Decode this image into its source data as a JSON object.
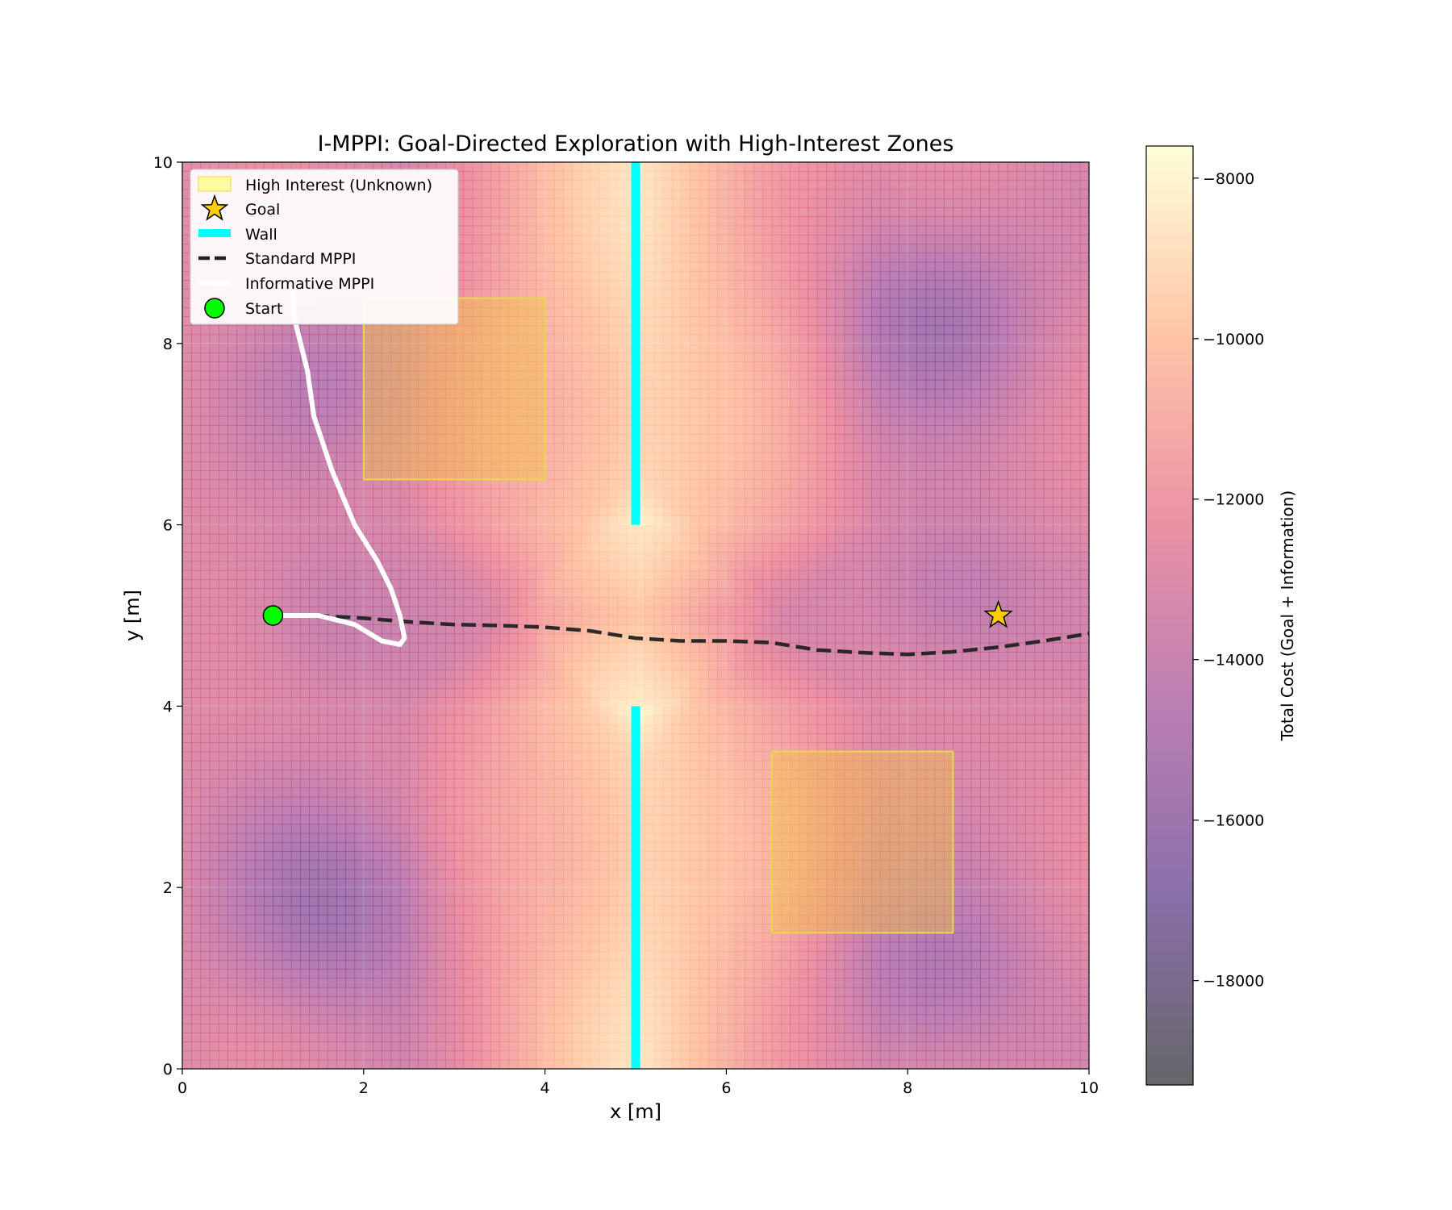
{
  "chart_data": {
    "type": "heatmap",
    "title": "I-MPPI: Goal-Directed Exploration with High-Interest Zones",
    "xlabel": "x [m]",
    "ylabel": "y [m]",
    "xlim": [
      0,
      10
    ],
    "ylim": [
      0,
      10
    ],
    "xticks": [
      0,
      2,
      4,
      6,
      8,
      10
    ],
    "yticks": [
      0,
      2,
      4,
      6,
      8,
      10
    ],
    "xtick_labels": [
      "0",
      "2",
      "4",
      "6",
      "8",
      "10"
    ],
    "ytick_labels": [
      "0",
      "2",
      "4",
      "6",
      "8",
      "10"
    ],
    "grid": true,
    "colorbar": {
      "label": "Total Cost (Goal + Information)",
      "range": [
        -19300,
        -7600
      ],
      "ticks": [
        -8000,
        -10000,
        -12000,
        -14000,
        -16000,
        -18000
      ],
      "tick_labels": [
        "−8000",
        "−10000",
        "−12000",
        "−14000",
        "−16000",
        "−18000"
      ],
      "colormap": [
        "#000004",
        "#3b0f70",
        "#8c2981",
        "#de4968",
        "#fe9f6d",
        "#fcfdbf"
      ],
      "alpha": 0.6
    },
    "high_interest_zones": [
      {
        "x": [
          2.0,
          4.0
        ],
        "y": [
          6.5,
          8.5
        ]
      },
      {
        "x": [
          6.5,
          8.5
        ],
        "y": [
          1.5,
          3.5
        ]
      }
    ],
    "zone_color": "#f5c542",
    "walls": [
      {
        "x": 5.0,
        "y": [
          0.0,
          4.0
        ]
      },
      {
        "x": 5.0,
        "y": [
          6.0,
          10.0
        ]
      }
    ],
    "wall_color": "#00ffff",
    "goal": {
      "x": 9.0,
      "y": 5.0
    },
    "goal_color": "#ffcc00",
    "start": {
      "x": 1.0,
      "y": 5.0
    },
    "start_color": "#00ff00",
    "series": [
      {
        "name": "Standard MPPI",
        "style": "dashed",
        "color": "#222222",
        "x": [
          1.0,
          1.5,
          2.0,
          2.5,
          3.0,
          3.5,
          4.0,
          4.5,
          5.0,
          5.5,
          6.0,
          6.5,
          7.0,
          7.5,
          8.0,
          8.5,
          9.0,
          9.5,
          10.0
        ],
        "y": [
          5.0,
          5.0,
          4.97,
          4.93,
          4.9,
          4.89,
          4.87,
          4.83,
          4.75,
          4.72,
          4.72,
          4.7,
          4.62,
          4.59,
          4.57,
          4.6,
          4.65,
          4.72,
          4.8
        ]
      },
      {
        "name": "Informative MPPI",
        "style": "solid",
        "color": "#ffffff",
        "x": [
          1.0,
          1.5,
          1.9,
          2.2,
          2.4,
          2.45,
          2.4,
          2.3,
          2.15,
          1.9,
          1.65,
          1.45,
          1.38,
          1.28,
          1.23,
          1.22
        ],
        "y": [
          5.0,
          5.0,
          4.9,
          4.72,
          4.68,
          4.75,
          5.0,
          5.3,
          5.6,
          6.0,
          6.6,
          7.2,
          7.7,
          8.1,
          8.3,
          8.6
        ]
      }
    ],
    "legend": {
      "placement": "top-left",
      "entries": [
        "High Interest (Unknown)",
        "Goal",
        "Wall",
        "Standard MPPI",
        "Informative MPPI",
        "Start"
      ]
    }
  }
}
